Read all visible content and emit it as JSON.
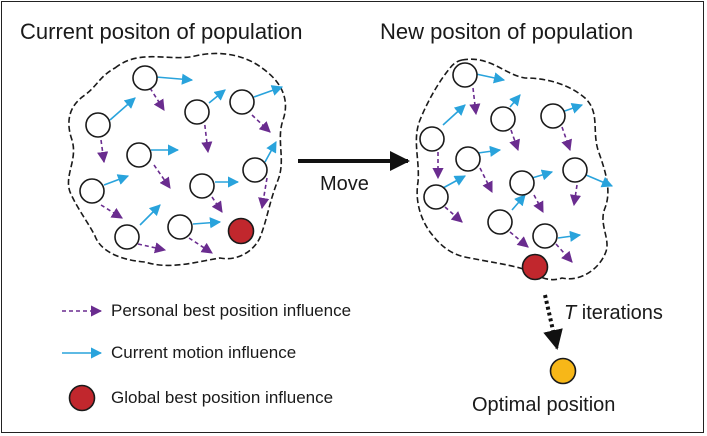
{
  "titles": {
    "current": "Current positon of population",
    "new": "New positon of population"
  },
  "move_label": "Move",
  "iterations": {
    "symbol": "T",
    "text": " iterations"
  },
  "optimal_label": "Optimal position",
  "legend": {
    "personal": "Personal best position influence",
    "current": "Current motion influence",
    "global": "Global best position influence"
  },
  "colors": {
    "personal_arrow": "#6a2c8f",
    "current_arrow": "#29a3dc",
    "global_best": "#c1272d",
    "optimal": "#f7b718",
    "outline": "#1a1a1a"
  }
}
